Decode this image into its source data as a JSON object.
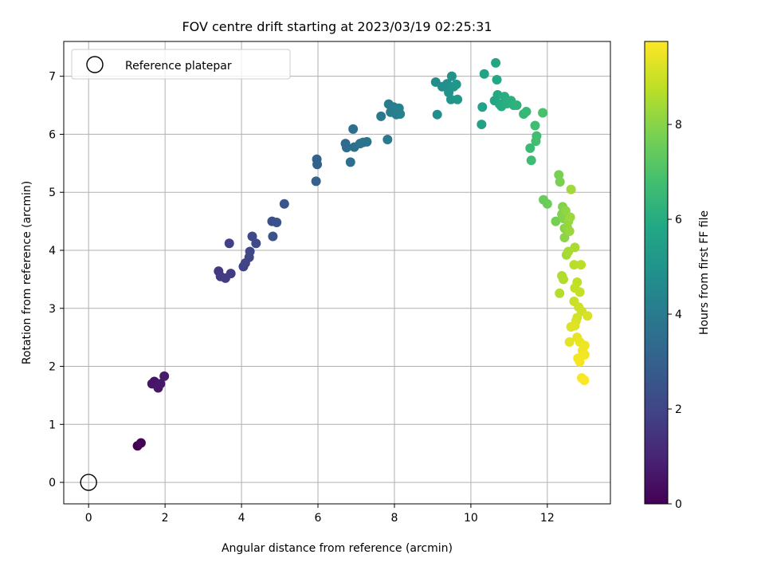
{
  "chart_data": {
    "type": "scatter",
    "title": "FOV centre drift starting at 2023/03/19 02:25:31",
    "xlabel": "Angular distance from reference (arcmin)",
    "ylabel": "Rotation from reference (arcmin)",
    "xlim": [
      -0.65,
      13.65
    ],
    "ylim": [
      -0.37,
      7.6
    ],
    "x_ticks": [
      0,
      2,
      4,
      6,
      8,
      10,
      12
    ],
    "y_ticks": [
      0,
      1,
      2,
      3,
      4,
      5,
      6,
      7
    ],
    "x_tick_labels": [
      "0",
      "2",
      "4",
      "6",
      "8",
      "10",
      "12"
    ],
    "y_tick_labels": [
      "0",
      "1",
      "2",
      "3",
      "4",
      "5",
      "6",
      "7"
    ],
    "grid": true,
    "legend": {
      "location": "upper-left",
      "entries": [
        "Reference platepar"
      ]
    },
    "reference_point": {
      "x": 0,
      "y": 0,
      "label": "Reference platepar"
    },
    "colorbar": {
      "label": "Hours from first FF file",
      "range": [
        0,
        9.75
      ],
      "ticks": [
        0,
        2,
        4,
        6,
        8
      ],
      "tick_labels": [
        "0",
        "2",
        "4",
        "6",
        "8"
      ],
      "colormap": "viridis"
    },
    "points": [
      {
        "x": 1.28,
        "y": 0.63,
        "h": 0.0
      },
      {
        "x": 1.37,
        "y": 0.68,
        "h": 0.1
      },
      {
        "x": 1.66,
        "y": 1.7,
        "h": 0.5
      },
      {
        "x": 1.72,
        "y": 1.74,
        "h": 0.55
      },
      {
        "x": 1.82,
        "y": 1.63,
        "h": 0.6
      },
      {
        "x": 1.88,
        "y": 1.7,
        "h": 0.65
      },
      {
        "x": 1.98,
        "y": 1.83,
        "h": 0.7
      },
      {
        "x": 3.4,
        "y": 3.64,
        "h": 1.6
      },
      {
        "x": 3.45,
        "y": 3.55,
        "h": 1.65
      },
      {
        "x": 3.58,
        "y": 3.52,
        "h": 1.7
      },
      {
        "x": 3.72,
        "y": 3.6,
        "h": 1.75
      },
      {
        "x": 3.68,
        "y": 4.12,
        "h": 1.85
      },
      {
        "x": 4.05,
        "y": 3.72,
        "h": 1.9
      },
      {
        "x": 4.1,
        "y": 3.78,
        "h": 1.95
      },
      {
        "x": 4.2,
        "y": 3.88,
        "h": 2.0
      },
      {
        "x": 4.22,
        "y": 3.98,
        "h": 2.05
      },
      {
        "x": 4.28,
        "y": 4.24,
        "h": 2.1
      },
      {
        "x": 4.38,
        "y": 4.12,
        "h": 2.15
      },
      {
        "x": 4.8,
        "y": 4.5,
        "h": 2.4
      },
      {
        "x": 4.82,
        "y": 4.24,
        "h": 2.45
      },
      {
        "x": 4.92,
        "y": 4.48,
        "h": 2.5
      },
      {
        "x": 5.12,
        "y": 4.8,
        "h": 2.6
      },
      {
        "x": 5.95,
        "y": 5.19,
        "h": 3.0
      },
      {
        "x": 5.98,
        "y": 5.48,
        "h": 3.05
      },
      {
        "x": 5.97,
        "y": 5.57,
        "h": 3.1
      },
      {
        "x": 6.72,
        "y": 5.84,
        "h": 3.4
      },
      {
        "x": 6.75,
        "y": 5.77,
        "h": 3.45
      },
      {
        "x": 6.85,
        "y": 5.52,
        "h": 3.5
      },
      {
        "x": 6.92,
        "y": 6.09,
        "h": 3.55
      },
      {
        "x": 6.95,
        "y": 5.78,
        "h": 3.6
      },
      {
        "x": 7.1,
        "y": 5.84,
        "h": 3.65
      },
      {
        "x": 7.18,
        "y": 5.86,
        "h": 3.7
      },
      {
        "x": 7.28,
        "y": 5.87,
        "h": 3.75
      },
      {
        "x": 7.65,
        "y": 6.31,
        "h": 3.9
      },
      {
        "x": 7.82,
        "y": 5.91,
        "h": 3.95
      },
      {
        "x": 7.85,
        "y": 6.52,
        "h": 4.0
      },
      {
        "x": 7.9,
        "y": 6.38,
        "h": 4.05
      },
      {
        "x": 7.98,
        "y": 6.47,
        "h": 4.1
      },
      {
        "x": 8.05,
        "y": 6.34,
        "h": 4.15
      },
      {
        "x": 8.12,
        "y": 6.45,
        "h": 4.2
      },
      {
        "x": 8.15,
        "y": 6.35,
        "h": 4.25
      },
      {
        "x": 9.08,
        "y": 6.9,
        "h": 4.7
      },
      {
        "x": 9.12,
        "y": 6.34,
        "h": 4.75
      },
      {
        "x": 9.25,
        "y": 6.82,
        "h": 4.8
      },
      {
        "x": 9.38,
        "y": 6.87,
        "h": 4.85
      },
      {
        "x": 9.42,
        "y": 6.72,
        "h": 4.9
      },
      {
        "x": 9.5,
        "y": 7.0,
        "h": 4.95
      },
      {
        "x": 9.48,
        "y": 6.6,
        "h": 5.0
      },
      {
        "x": 9.55,
        "y": 6.82,
        "h": 5.05
      },
      {
        "x": 9.62,
        "y": 6.86,
        "h": 5.1
      },
      {
        "x": 9.65,
        "y": 6.6,
        "h": 5.15
      },
      {
        "x": 10.28,
        "y": 6.17,
        "h": 5.55
      },
      {
        "x": 10.3,
        "y": 6.47,
        "h": 5.6
      },
      {
        "x": 10.35,
        "y": 7.04,
        "h": 5.65
      },
      {
        "x": 10.62,
        "y": 6.58,
        "h": 5.75
      },
      {
        "x": 10.65,
        "y": 7.23,
        "h": 5.8
      },
      {
        "x": 10.68,
        "y": 6.94,
        "h": 5.85
      },
      {
        "x": 10.7,
        "y": 6.68,
        "h": 5.9
      },
      {
        "x": 10.75,
        "y": 6.52,
        "h": 5.95
      },
      {
        "x": 10.8,
        "y": 6.48,
        "h": 6.0
      },
      {
        "x": 10.88,
        "y": 6.65,
        "h": 6.05
      },
      {
        "x": 10.95,
        "y": 6.53,
        "h": 6.1
      },
      {
        "x": 11.05,
        "y": 6.58,
        "h": 6.15
      },
      {
        "x": 11.12,
        "y": 6.5,
        "h": 6.2
      },
      {
        "x": 11.2,
        "y": 6.5,
        "h": 6.25
      },
      {
        "x": 11.38,
        "y": 6.35,
        "h": 6.45
      },
      {
        "x": 11.45,
        "y": 6.39,
        "h": 6.5
      },
      {
        "x": 11.55,
        "y": 5.76,
        "h": 6.6
      },
      {
        "x": 11.58,
        "y": 5.55,
        "h": 6.65
      },
      {
        "x": 11.68,
        "y": 6.15,
        "h": 6.7
      },
      {
        "x": 11.72,
        "y": 5.97,
        "h": 6.75
      },
      {
        "x": 11.7,
        "y": 5.88,
        "h": 6.8
      },
      {
        "x": 11.88,
        "y": 6.37,
        "h": 6.9
      },
      {
        "x": 11.9,
        "y": 4.87,
        "h": 7.5
      },
      {
        "x": 12.0,
        "y": 4.8,
        "h": 7.55
      },
      {
        "x": 12.22,
        "y": 4.5,
        "h": 7.7
      },
      {
        "x": 12.3,
        "y": 5.3,
        "h": 7.75
      },
      {
        "x": 12.33,
        "y": 5.18,
        "h": 7.8
      },
      {
        "x": 12.38,
        "y": 4.62,
        "h": 7.85
      },
      {
        "x": 12.4,
        "y": 4.75,
        "h": 7.9
      },
      {
        "x": 12.42,
        "y": 4.55,
        "h": 7.95
      },
      {
        "x": 12.45,
        "y": 4.38,
        "h": 8.0
      },
      {
        "x": 12.45,
        "y": 4.22,
        "h": 8.05
      },
      {
        "x": 12.48,
        "y": 4.68,
        "h": 8.1
      },
      {
        "x": 12.52,
        "y": 4.4,
        "h": 8.15
      },
      {
        "x": 12.55,
        "y": 4.5,
        "h": 8.2
      },
      {
        "x": 12.58,
        "y": 4.33,
        "h": 8.25
      },
      {
        "x": 12.6,
        "y": 4.57,
        "h": 8.3
      },
      {
        "x": 12.62,
        "y": 5.05,
        "h": 8.35
      },
      {
        "x": 12.5,
        "y": 3.92,
        "h": 8.4
      },
      {
        "x": 12.55,
        "y": 3.98,
        "h": 8.45
      },
      {
        "x": 12.72,
        "y": 4.05,
        "h": 8.5
      },
      {
        "x": 12.38,
        "y": 3.56,
        "h": 8.55
      },
      {
        "x": 12.42,
        "y": 3.5,
        "h": 8.6
      },
      {
        "x": 12.32,
        "y": 3.26,
        "h": 8.65
      },
      {
        "x": 12.7,
        "y": 3.75,
        "h": 8.7
      },
      {
        "x": 12.88,
        "y": 3.75,
        "h": 8.75
      },
      {
        "x": 12.78,
        "y": 3.45,
        "h": 8.8
      },
      {
        "x": 12.72,
        "y": 3.35,
        "h": 8.85
      },
      {
        "x": 12.85,
        "y": 3.28,
        "h": 8.9
      },
      {
        "x": 12.7,
        "y": 3.12,
        "h": 8.95
      },
      {
        "x": 12.82,
        "y": 3.02,
        "h": 9.0
      },
      {
        "x": 12.9,
        "y": 2.95,
        "h": 9.05
      },
      {
        "x": 12.78,
        "y": 2.84,
        "h": 9.1
      },
      {
        "x": 12.75,
        "y": 2.78,
        "h": 9.15
      },
      {
        "x": 13.05,
        "y": 2.87,
        "h": 9.2
      },
      {
        "x": 12.62,
        "y": 2.68,
        "h": 9.25
      },
      {
        "x": 12.72,
        "y": 2.7,
        "h": 9.3
      },
      {
        "x": 12.58,
        "y": 2.42,
        "h": 9.35
      },
      {
        "x": 12.78,
        "y": 2.5,
        "h": 9.4
      },
      {
        "x": 12.85,
        "y": 2.42,
        "h": 9.45
      },
      {
        "x": 12.98,
        "y": 2.36,
        "h": 9.5
      },
      {
        "x": 12.92,
        "y": 2.27,
        "h": 9.55
      },
      {
        "x": 12.98,
        "y": 2.2,
        "h": 9.58
      },
      {
        "x": 12.8,
        "y": 2.14,
        "h": 9.6
      },
      {
        "x": 12.85,
        "y": 2.08,
        "h": 9.62
      },
      {
        "x": 12.9,
        "y": 1.8,
        "h": 9.65
      },
      {
        "x": 12.97,
        "y": 1.76,
        "h": 9.7
      }
    ]
  }
}
